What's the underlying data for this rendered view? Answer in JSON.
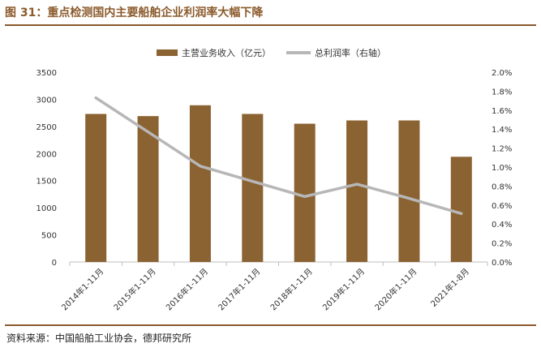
{
  "title": "图 31：重点检测国内主要船舶企业利润率大幅下降",
  "source": "资料来源：中国船舶工业协会，德邦研究所",
  "colors": {
    "bar": "#8b6232",
    "line": "#b7b7b7",
    "accent": "#8b5a2b"
  },
  "chart_data": {
    "type": "bar",
    "categories": [
      "2014年1-11月",
      "2015年1-11月",
      "2016年1-11月",
      "2017年1-11月",
      "2018年1-11月",
      "2019年1-11月",
      "2020年1-11月",
      "2021年1-8月"
    ],
    "series": [
      {
        "name": "主营业务收入（亿元）",
        "type": "bar",
        "axis": "left",
        "values": [
          2730,
          2690,
          2890,
          2730,
          2550,
          2610,
          2610,
          1940
        ]
      },
      {
        "name": "总利润率（右轴）",
        "type": "line",
        "axis": "right",
        "values": [
          1.73,
          1.37,
          1.01,
          0.85,
          0.69,
          0.82,
          0.67,
          0.51
        ]
      }
    ],
    "y_left": {
      "min": 0,
      "max": 3500,
      "ticks": [
        "0",
        "500",
        "1000",
        "1500",
        "2000",
        "2500",
        "3000",
        "3500"
      ]
    },
    "y_right": {
      "min": 0,
      "max": 2.0,
      "ticks": [
        "0.0%",
        "0.2%",
        "0.4%",
        "0.6%",
        "0.8%",
        "1.0%",
        "1.2%",
        "1.4%",
        "1.6%",
        "1.8%",
        "2.0%"
      ]
    },
    "legend_position": "top-center",
    "grid": false
  }
}
